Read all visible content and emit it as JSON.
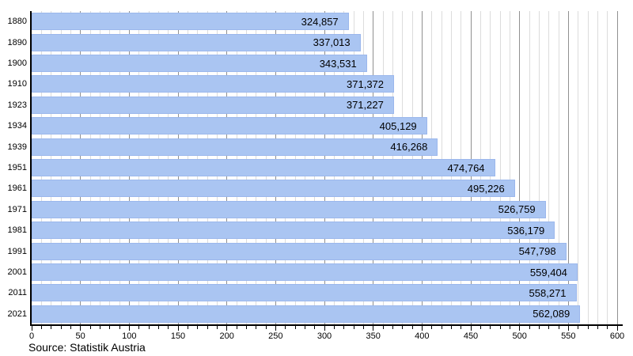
{
  "chart_data": {
    "type": "bar",
    "orientation": "horizontal",
    "title": "",
    "xlabel": "",
    "ylabel": "",
    "categories": [
      "1880",
      "1890",
      "1900",
      "1910",
      "1923",
      "1934",
      "1939",
      "1951",
      "1961",
      "1971",
      "1981",
      "1991",
      "2001",
      "2011",
      "2021"
    ],
    "values": [
      324857,
      337013,
      343531,
      371372,
      371227,
      405129,
      416268,
      474764,
      495226,
      526759,
      536179,
      547798,
      559404,
      558271,
      562089
    ],
    "value_labels": [
      "324,857",
      "337,013",
      "343,531",
      "371,372",
      "371,227",
      "405,129",
      "416,268",
      "474,764",
      "495,226",
      "526,759",
      "536,179",
      "547,798",
      "559,404",
      "558,271",
      "562,089"
    ],
    "xlim": [
      0,
      600000
    ],
    "x_major_step": 50000,
    "x_minor_step": 10000,
    "x_tick_labels": [
      "0",
      "50",
      "100",
      "150",
      "200",
      "250",
      "300",
      "350",
      "400",
      "450",
      "500",
      "550",
      "600"
    ],
    "grid": true,
    "legend": "none",
    "colors": {
      "bar_fill": "#aac5f2",
      "bar_border": "#9bb7ec",
      "grid_major": "#909090",
      "grid_minor": "#dcdcdc",
      "axis": "#000000",
      "text": "#000000",
      "background": "#ffffff"
    }
  },
  "source": {
    "label": "Source: Statistik Austria"
  }
}
